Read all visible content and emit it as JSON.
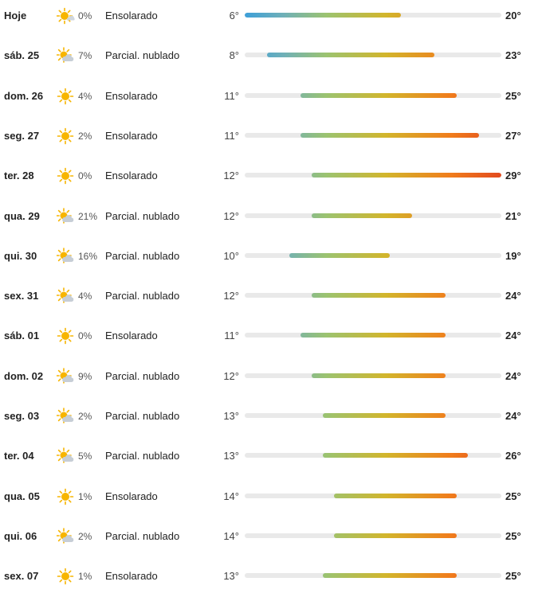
{
  "forecast": {
    "scale": {
      "min": 6,
      "max": 29
    },
    "days": [
      {
        "day": "Hoje",
        "icon": "partly-sunny-icon",
        "precip": "0%",
        "condition": "Ensolarado",
        "low_label": "6°",
        "high_label": "20°",
        "low": 6,
        "high": 20
      },
      {
        "day": "sáb. 25",
        "icon": "partly-cloudy-icon",
        "precip": "7%",
        "condition": "Parcial. nublado",
        "low_label": "8°",
        "high_label": "23°",
        "low": 8,
        "high": 23
      },
      {
        "day": "dom. 26",
        "icon": "sun-icon",
        "precip": "4%",
        "condition": "Ensolarado",
        "low_label": "11°",
        "high_label": "25°",
        "low": 11,
        "high": 25
      },
      {
        "day": "seg. 27",
        "icon": "sun-icon",
        "precip": "2%",
        "condition": "Ensolarado",
        "low_label": "11°",
        "high_label": "27°",
        "low": 11,
        "high": 27
      },
      {
        "day": "ter. 28",
        "icon": "sun-icon",
        "precip": "0%",
        "condition": "Ensolarado",
        "low_label": "12°",
        "high_label": "29°",
        "low": 12,
        "high": 29
      },
      {
        "day": "qua. 29",
        "icon": "partly-cloudy-icon",
        "precip": "21%",
        "condition": "Parcial. nublado",
        "low_label": "12°",
        "high_label": "21°",
        "low": 12,
        "high": 21
      },
      {
        "day": "qui. 30",
        "icon": "partly-cloudy-icon",
        "precip": "16%",
        "condition": "Parcial. nublado",
        "low_label": "10°",
        "high_label": "19°",
        "low": 10,
        "high": 19
      },
      {
        "day": "sex. 31",
        "icon": "partly-cloudy-icon",
        "precip": "4%",
        "condition": "Parcial. nublado",
        "low_label": "12°",
        "high_label": "24°",
        "low": 12,
        "high": 24
      },
      {
        "day": "sáb. 01",
        "icon": "sun-icon",
        "precip": "0%",
        "condition": "Ensolarado",
        "low_label": "11°",
        "high_label": "24°",
        "low": 11,
        "high": 24
      },
      {
        "day": "dom. 02",
        "icon": "partly-cloudy-icon",
        "precip": "9%",
        "condition": "Parcial. nublado",
        "low_label": "12°",
        "high_label": "24°",
        "low": 12,
        "high": 24
      },
      {
        "day": "seg. 03",
        "icon": "partly-cloudy-icon",
        "precip": "2%",
        "condition": "Parcial. nublado",
        "low_label": "13°",
        "high_label": "24°",
        "low": 13,
        "high": 24
      },
      {
        "day": "ter. 04",
        "icon": "partly-cloudy-icon",
        "precip": "5%",
        "condition": "Parcial. nublado",
        "low_label": "13°",
        "high_label": "26°",
        "low": 13,
        "high": 26
      },
      {
        "day": "qua. 05",
        "icon": "sun-icon",
        "precip": "1%",
        "condition": "Ensolarado",
        "low_label": "14°",
        "high_label": "25°",
        "low": 14,
        "high": 25
      },
      {
        "day": "qui. 06",
        "icon": "partly-cloudy-icon",
        "precip": "2%",
        "condition": "Parcial. nublado",
        "low_label": "14°",
        "high_label": "25°",
        "low": 14,
        "high": 25
      },
      {
        "day": "sex. 07",
        "icon": "sun-icon",
        "precip": "1%",
        "condition": "Ensolarado",
        "low_label": "13°",
        "high_label": "25°",
        "low": 13,
        "high": 25
      }
    ]
  }
}
